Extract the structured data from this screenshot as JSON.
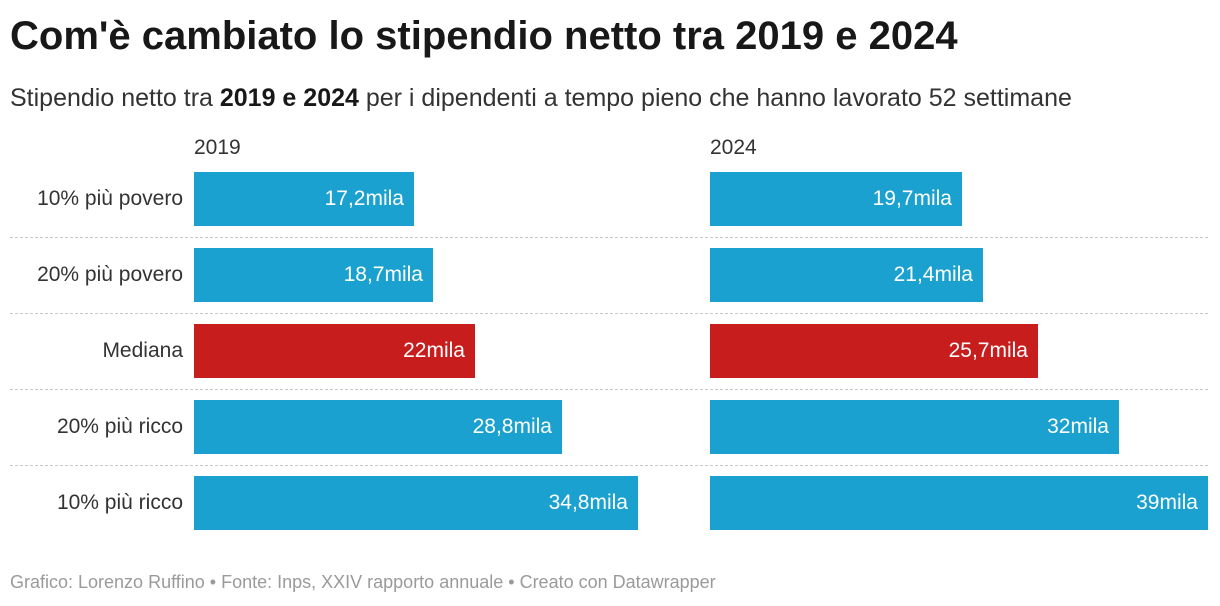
{
  "title": "Com'è cambiato lo stipendio netto tra 2019 e 2024",
  "subtitle": {
    "before": "Stipendio netto tra ",
    "bold": "2019 e 2024",
    "after": " per i dipendenti a tempo pieno che hanno lavorato 52 settimane"
  },
  "footer": "Grafico: Lorenzo Ruffino • Fonte: Inps, XXIV rapporto annuale • Creato con Datawrapper",
  "colors": {
    "default_bar": "#1ba1d0",
    "highlight_bar": "#c71e1d"
  },
  "chart_data": {
    "type": "bar",
    "orientation": "horizontal",
    "unit": "mila",
    "categories": [
      "10% più povero",
      "20% più povero",
      "Mediana",
      "20% più ricco",
      "10% più ricco"
    ],
    "highlight_category": "Mediana",
    "xlim": [
      0,
      39
    ],
    "grid": false,
    "series": [
      {
        "name": "2019",
        "values": [
          17.2,
          18.7,
          22,
          28.8,
          34.8
        ],
        "labels": [
          "17,2mila",
          "18,7mila",
          "22mila",
          "28,8mila",
          "34,8mila"
        ]
      },
      {
        "name": "2024",
        "values": [
          19.7,
          21.4,
          25.7,
          32,
          39
        ],
        "labels": [
          "19,7mila",
          "21,4mila",
          "25,7mila",
          "32mila",
          "39mila"
        ]
      }
    ]
  }
}
